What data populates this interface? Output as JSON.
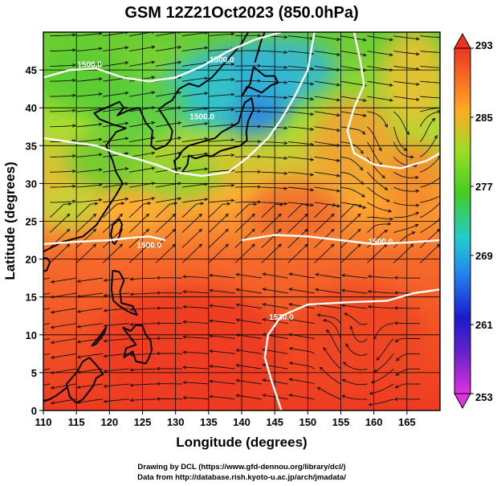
{
  "title": "GSM 12Z21Oct2023 (850.0hPa)",
  "footer": {
    "line1": "Drawing by DCL (https://www.gfd-dennou.org/library/dcl/)",
    "line2": "Data from http://database.rish.kyoto-u.ac.jp/arch/jmadata/"
  },
  "colorbar": {
    "labels": [
      "293",
      "285",
      "277",
      "269",
      "261",
      "253"
    ],
    "min": 253,
    "max": 293
  },
  "chart_data": {
    "type": "heatmap",
    "title": "GSM 12Z21Oct2023 (850.0hPa)",
    "xlabel": "Longitude (degrees)",
    "ylabel": "Latitude  (degrees)",
    "xlim": [
      110,
      170
    ],
    "ylim": [
      0,
      50
    ],
    "x_ticks": [
      "110",
      "115",
      "120",
      "125",
      "130",
      "135",
      "140",
      "145",
      "150",
      "155",
      "160",
      "165"
    ],
    "y_ticks": [
      "0",
      "5",
      "10",
      "15",
      "20",
      "25",
      "30",
      "35",
      "40",
      "45"
    ],
    "grid": true,
    "colormap": [
      "#dd33dd",
      "#1a1acc",
      "#2288ee",
      "#22cccc",
      "#44cc22",
      "#99dd22",
      "#ffcc22",
      "#ff8822",
      "#ee3322"
    ],
    "colorbar_range": [
      253,
      293
    ],
    "contour_labels": [
      "1500.0",
      "1500.0",
      "1500.0",
      "1500.0",
      "1500.0",
      "1530.0"
    ],
    "overlay": "wind streamlines",
    "coastlines": true
  }
}
